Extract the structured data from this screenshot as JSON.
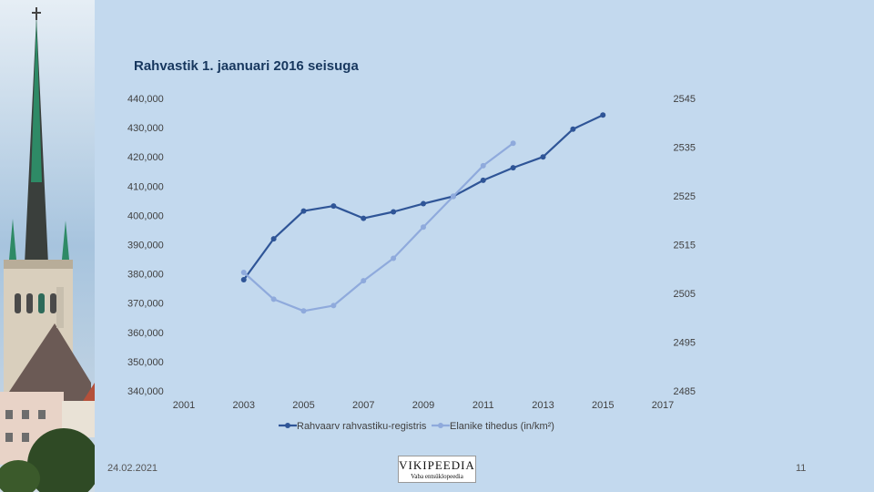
{
  "slide": {
    "date": "24.02.2021",
    "page_number": "11",
    "logo": {
      "name": "VIKIPEEDIA",
      "subtitle": "Vaba entsüklopeedia"
    }
  },
  "colors": {
    "background": "#c3d9ee",
    "series1": "#2f5597",
    "series2": "#8faadc",
    "axis_text": "#404040"
  },
  "chart_data": {
    "type": "line",
    "title": "Rahvastik 1. jaanuari 2016 seisuga",
    "x_ticks": [
      "2001",
      "2003",
      "2005",
      "2007",
      "2009",
      "2011",
      "2013",
      "2015",
      "2017"
    ],
    "xlim": [
      2001,
      2017
    ],
    "y_left_ticks": [
      "440,000",
      "430,000",
      "420,000",
      "410,000",
      "400,000",
      "390,000",
      "380,000",
      "370,000",
      "360,000",
      "350,000",
      "340,000"
    ],
    "ylim_left": [
      340000,
      440000
    ],
    "y_right_ticks": [
      "2545",
      "2535",
      "2525",
      "2515",
      "2505",
      "2495",
      "2485"
    ],
    "ylim_right": [
      2485,
      2545
    ],
    "legend_position": "bottom",
    "series": [
      {
        "name": "Rahvaarv rahvastiku-registris",
        "axis": "left",
        "x": [
          2003,
          2004,
          2005,
          2006,
          2007,
          2008,
          2009,
          2010,
          2011,
          2012,
          2013,
          2014,
          2015
        ],
        "values": [
          378000,
          392000,
          401500,
          403200,
          399000,
          401200,
          404000,
          406500,
          412000,
          416300,
          420000,
          429500,
          434300
        ]
      },
      {
        "name": "Elanike tihedus (in/km²)",
        "axis": "right",
        "x": [
          2003,
          2004,
          2005,
          2006,
          2007,
          2008,
          2009,
          2010,
          2011,
          2012
        ],
        "values": [
          2509.3,
          2503.8,
          2501.4,
          2502.5,
          2507.6,
          2512.2,
          2518.6,
          2524.9,
          2531.2,
          2535.8
        ]
      }
    ]
  }
}
